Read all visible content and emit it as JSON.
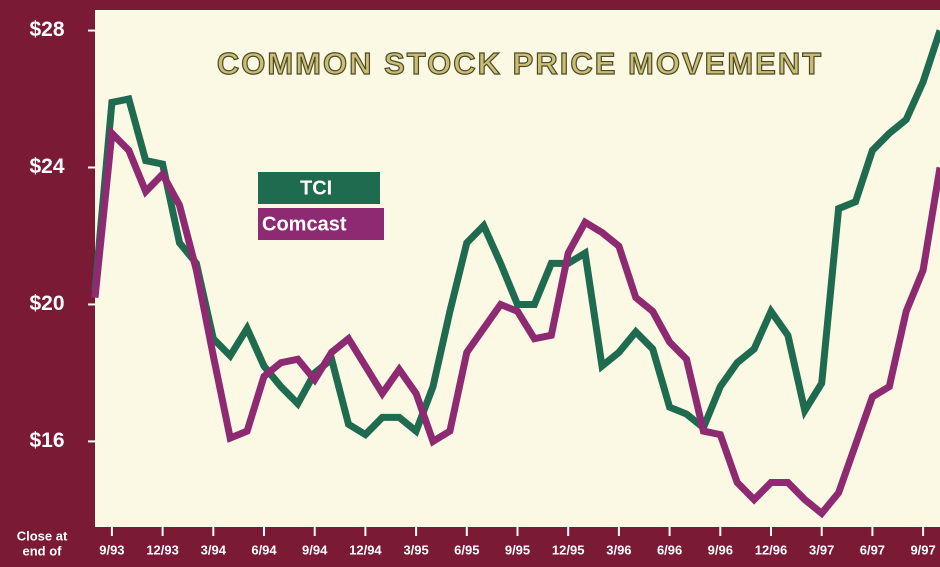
{
  "chart_data": {
    "type": "line",
    "title": "COMMON STOCK PRICE MOVEMENT",
    "x_label": [
      "Close at",
      "end of"
    ],
    "categories": [
      null,
      "9/93",
      null,
      null,
      "12/93",
      null,
      null,
      "3/94",
      null,
      null,
      "6/94",
      null,
      null,
      "9/94",
      null,
      null,
      "12/94",
      null,
      null,
      "3/95",
      null,
      null,
      "6/95",
      null,
      null,
      "9/95",
      null,
      null,
      "12/95",
      null,
      null,
      "3/96",
      null,
      null,
      "6/96",
      null,
      null,
      "9/96",
      null,
      null,
      "12/96",
      null,
      null,
      "3/97",
      null,
      null,
      "6/97",
      null,
      null,
      "9/97",
      null
    ],
    "series": [
      {
        "name": "TCI",
        "color": "#1f6b4f",
        "values": [
          20.4,
          25.9,
          26.0,
          24.2,
          24.1,
          21.8,
          21.2,
          19.0,
          18.5,
          19.3,
          18.2,
          17.6,
          17.1,
          18.0,
          18.4,
          16.5,
          16.2,
          16.7,
          16.7,
          16.3,
          17.6,
          19.8,
          21.8,
          22.3,
          21.2,
          20.0,
          20.0,
          21.2,
          21.2,
          21.5,
          18.2,
          18.6,
          19.2,
          18.7,
          17.0,
          16.8,
          16.4,
          17.6,
          18.3,
          18.7,
          19.8,
          19.1,
          16.9,
          17.7,
          22.8,
          23.0,
          24.5,
          25.0,
          25.4,
          26.5,
          28.0
        ]
      },
      {
        "name": "Comcast",
        "color": "#8e2a72",
        "values": [
          20.2,
          25.0,
          24.5,
          23.3,
          23.8,
          22.9,
          21.0,
          18.5,
          16.1,
          16.3,
          17.9,
          18.3,
          18.4,
          17.8,
          18.6,
          19.0,
          18.2,
          17.4,
          18.1,
          17.4,
          16.0,
          16.3,
          18.6,
          19.3,
          20.0,
          19.8,
          19.0,
          19.1,
          21.5,
          22.4,
          22.1,
          21.7,
          20.2,
          19.8,
          18.9,
          18.4,
          16.3,
          16.2,
          14.8,
          14.3,
          14.8,
          14.8,
          14.3,
          13.9,
          14.5,
          15.9,
          17.3,
          17.6,
          19.8,
          21.0,
          24.0
        ]
      }
    ],
    "ylim": [
      13.5,
      28.6
    ],
    "yticks": [
      {
        "value": 16,
        "label": "$16"
      },
      {
        "value": 20,
        "label": "$20"
      },
      {
        "value": 24,
        "label": "$24"
      },
      {
        "value": 28,
        "label": "$28"
      }
    ],
    "grid": false
  }
}
